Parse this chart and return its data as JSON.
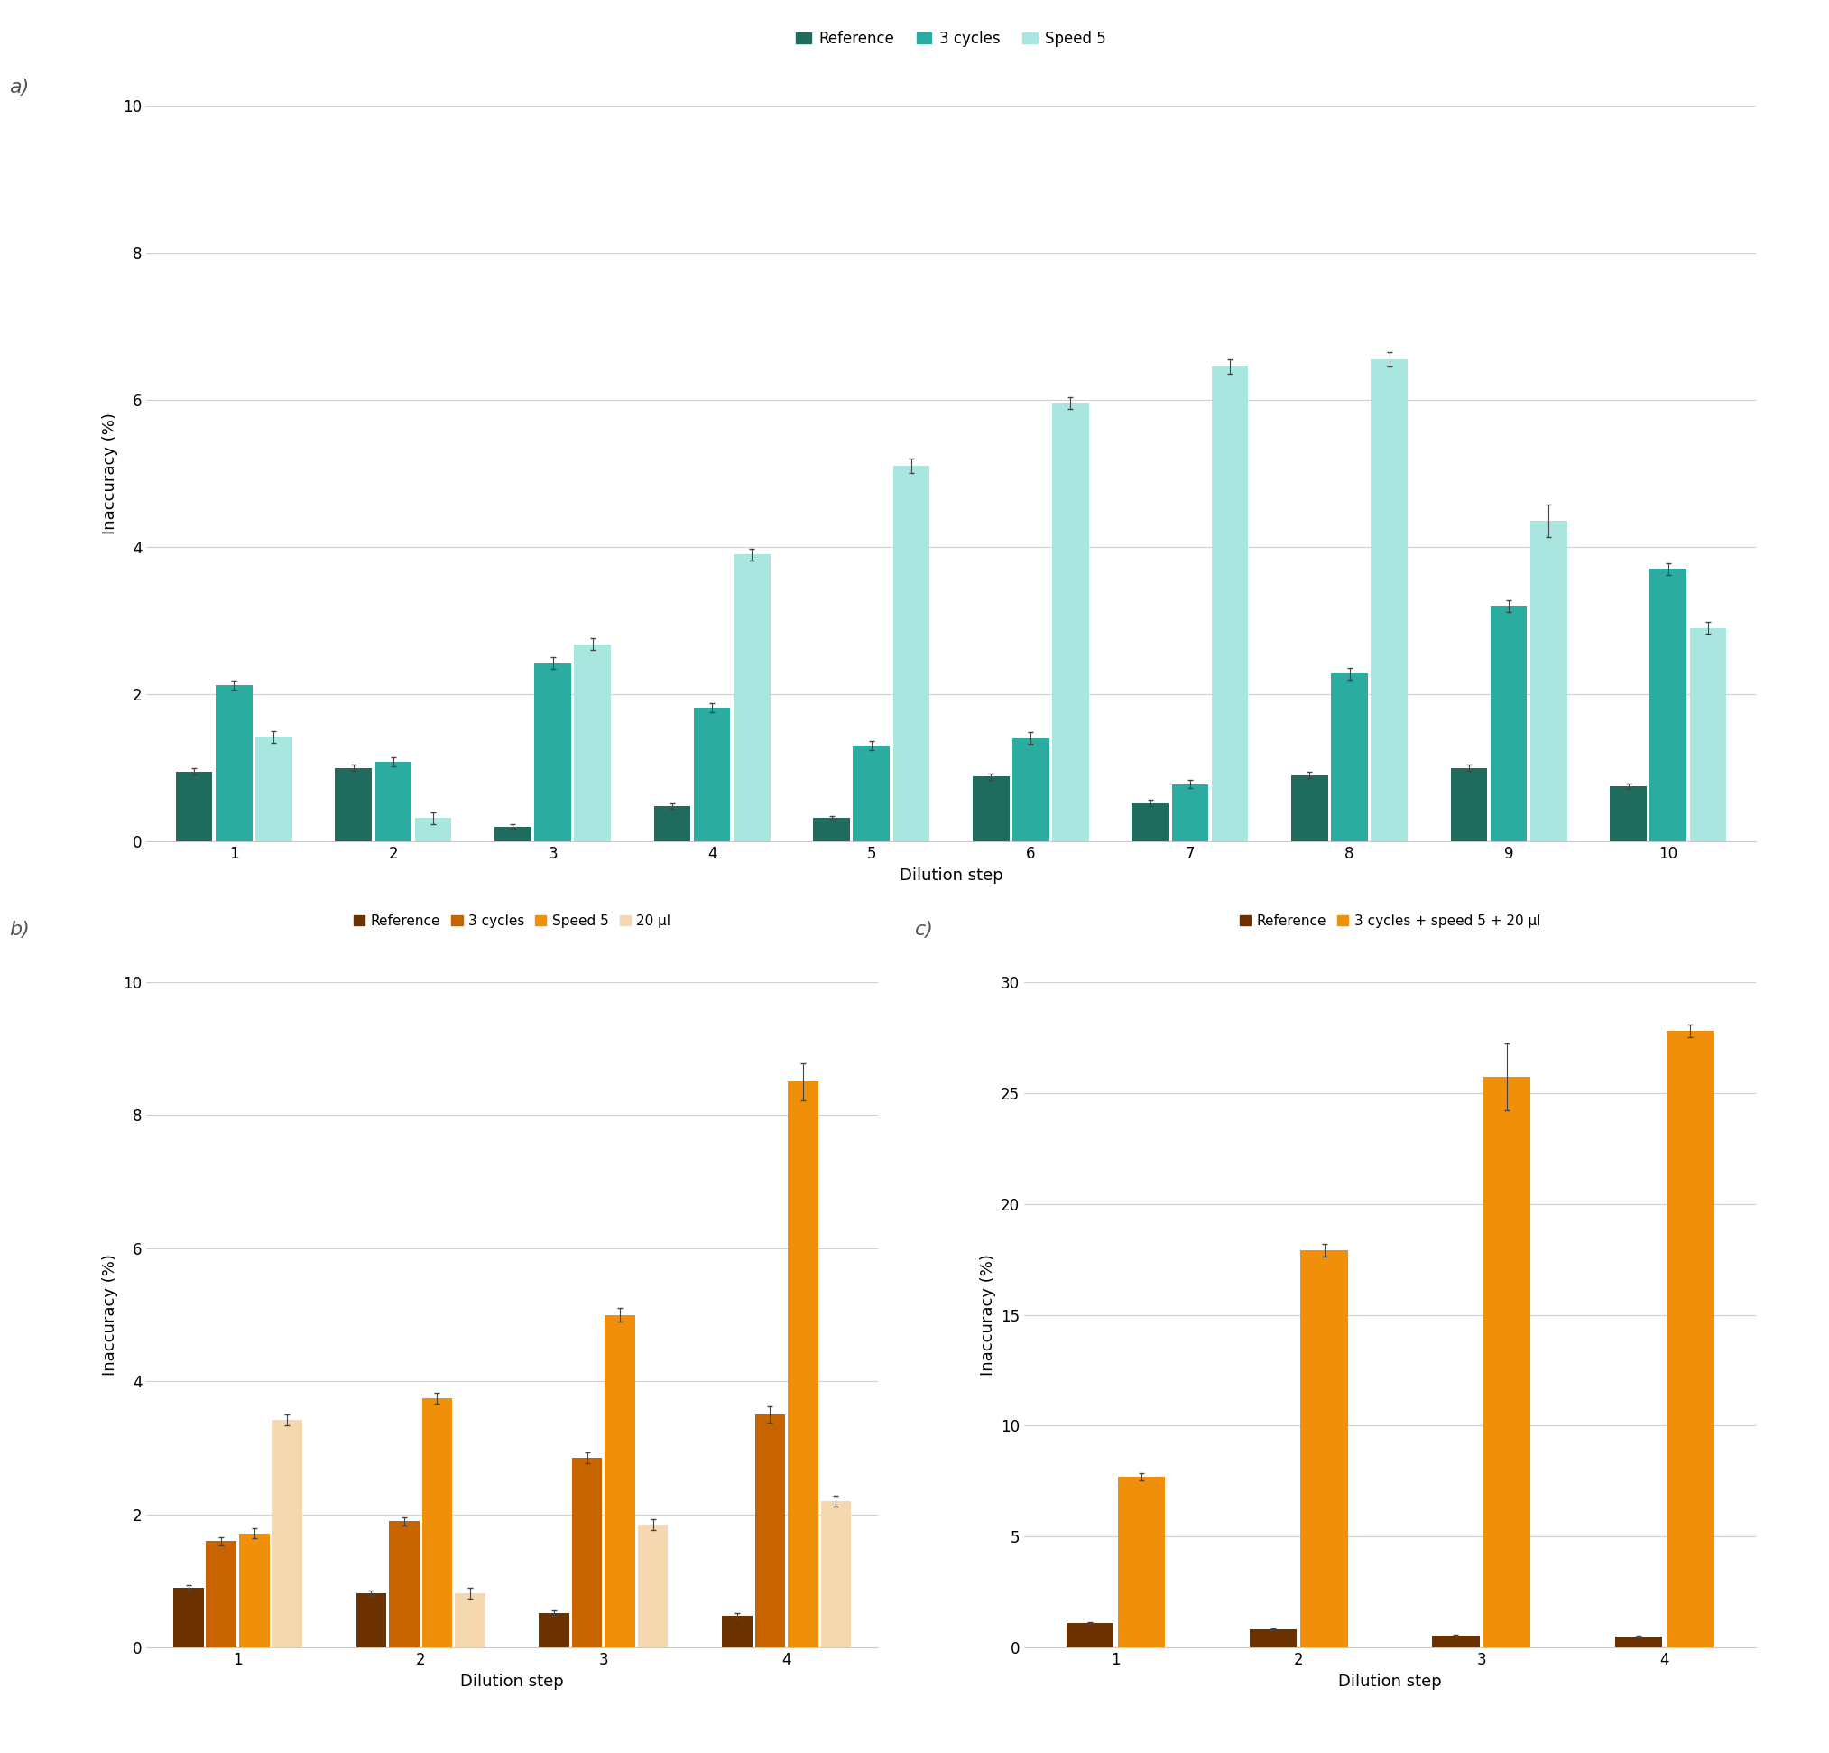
{
  "panel_a": {
    "title": "a)",
    "xlabel": "Dilution step",
    "ylabel": "Inaccuracy (%)",
    "ylim": [
      0,
      10
    ],
    "yticks": [
      0,
      2,
      4,
      6,
      8,
      10
    ],
    "xticks": [
      1,
      2,
      3,
      4,
      5,
      6,
      7,
      8,
      9,
      10
    ],
    "series": {
      "Reference": {
        "color": "#1f6b5e",
        "values": [
          0.95,
          1.0,
          0.2,
          0.48,
          0.32,
          0.88,
          0.52,
          0.9,
          1.0,
          0.75
        ],
        "errors": [
          0.04,
          0.04,
          0.03,
          0.04,
          0.03,
          0.04,
          0.04,
          0.04,
          0.04,
          0.04
        ]
      },
      "3 cycles": {
        "color": "#2aada0",
        "values": [
          2.12,
          1.08,
          2.42,
          1.82,
          1.3,
          1.4,
          0.78,
          2.28,
          3.2,
          3.7
        ],
        "errors": [
          0.06,
          0.06,
          0.08,
          0.06,
          0.06,
          0.08,
          0.06,
          0.08,
          0.08,
          0.08
        ]
      },
      "Speed 5": {
        "color": "#a8e6df",
        "values": [
          1.42,
          0.32,
          2.68,
          3.9,
          5.1,
          5.95,
          6.45,
          6.55,
          4.35,
          2.9
        ],
        "errors": [
          0.08,
          0.08,
          0.08,
          0.08,
          0.1,
          0.08,
          0.1,
          0.1,
          0.22,
          0.08
        ]
      }
    },
    "legend_labels": [
      "Reference",
      "3 cycles",
      "Speed 5"
    ],
    "bar_width": 0.25
  },
  "panel_b": {
    "title": "b)",
    "xlabel": "Dilution step",
    "ylabel": "Inaccuracy (%)",
    "ylim": [
      0,
      10
    ],
    "yticks": [
      0,
      2,
      4,
      6,
      8,
      10
    ],
    "xticks": [
      1,
      2,
      3,
      4
    ],
    "series": {
      "Reference": {
        "color": "#6b3200",
        "values": [
          0.9,
          0.82,
          0.52,
          0.48
        ],
        "errors": [
          0.04,
          0.04,
          0.04,
          0.04
        ]
      },
      "3 cycles": {
        "color": "#c86400",
        "values": [
          1.6,
          1.9,
          2.85,
          3.5
        ],
        "errors": [
          0.06,
          0.06,
          0.08,
          0.12
        ]
      },
      "Speed 5": {
        "color": "#f0900a",
        "values": [
          1.72,
          3.75,
          5.0,
          8.5
        ],
        "errors": [
          0.08,
          0.08,
          0.1,
          0.28
        ]
      },
      "20 ul": {
        "color": "#f5d8b0",
        "values": [
          3.42,
          0.82,
          1.85,
          2.2
        ],
        "errors": [
          0.08,
          0.08,
          0.08,
          0.08
        ]
      }
    },
    "legend_labels": [
      "Reference",
      "3 cycles",
      "Speed 5",
      "20 µl"
    ],
    "bar_width": 0.18
  },
  "panel_c": {
    "title": "c)",
    "xlabel": "Dilution step",
    "ylabel": "Inaccuracy (%)",
    "ylim": [
      0,
      30
    ],
    "yticks": [
      0,
      5,
      10,
      15,
      20,
      25,
      30
    ],
    "xticks": [
      1,
      2,
      3,
      4
    ],
    "series": {
      "Reference": {
        "color": "#6b3200",
        "values": [
          1.1,
          0.85,
          0.55,
          0.5
        ],
        "errors": [
          0.04,
          0.04,
          0.04,
          0.04
        ]
      },
      "3 cycles + speed 5 + 20 ul": {
        "color": "#f0900a",
        "values": [
          7.7,
          17.9,
          25.7,
          27.8
        ],
        "errors": [
          0.18,
          0.28,
          1.5,
          0.28
        ]
      }
    },
    "legend_labels": [
      "Reference",
      "3 cycles + speed 5 + 20 µl"
    ],
    "bar_width": 0.28
  },
  "background_color": "#ffffff",
  "plot_bg_color": "#ffffff",
  "grid_color": "#d0d0d0",
  "label_fontsize": 13,
  "tick_fontsize": 12,
  "legend_fontsize": 12,
  "panel_label_fontsize": 16
}
